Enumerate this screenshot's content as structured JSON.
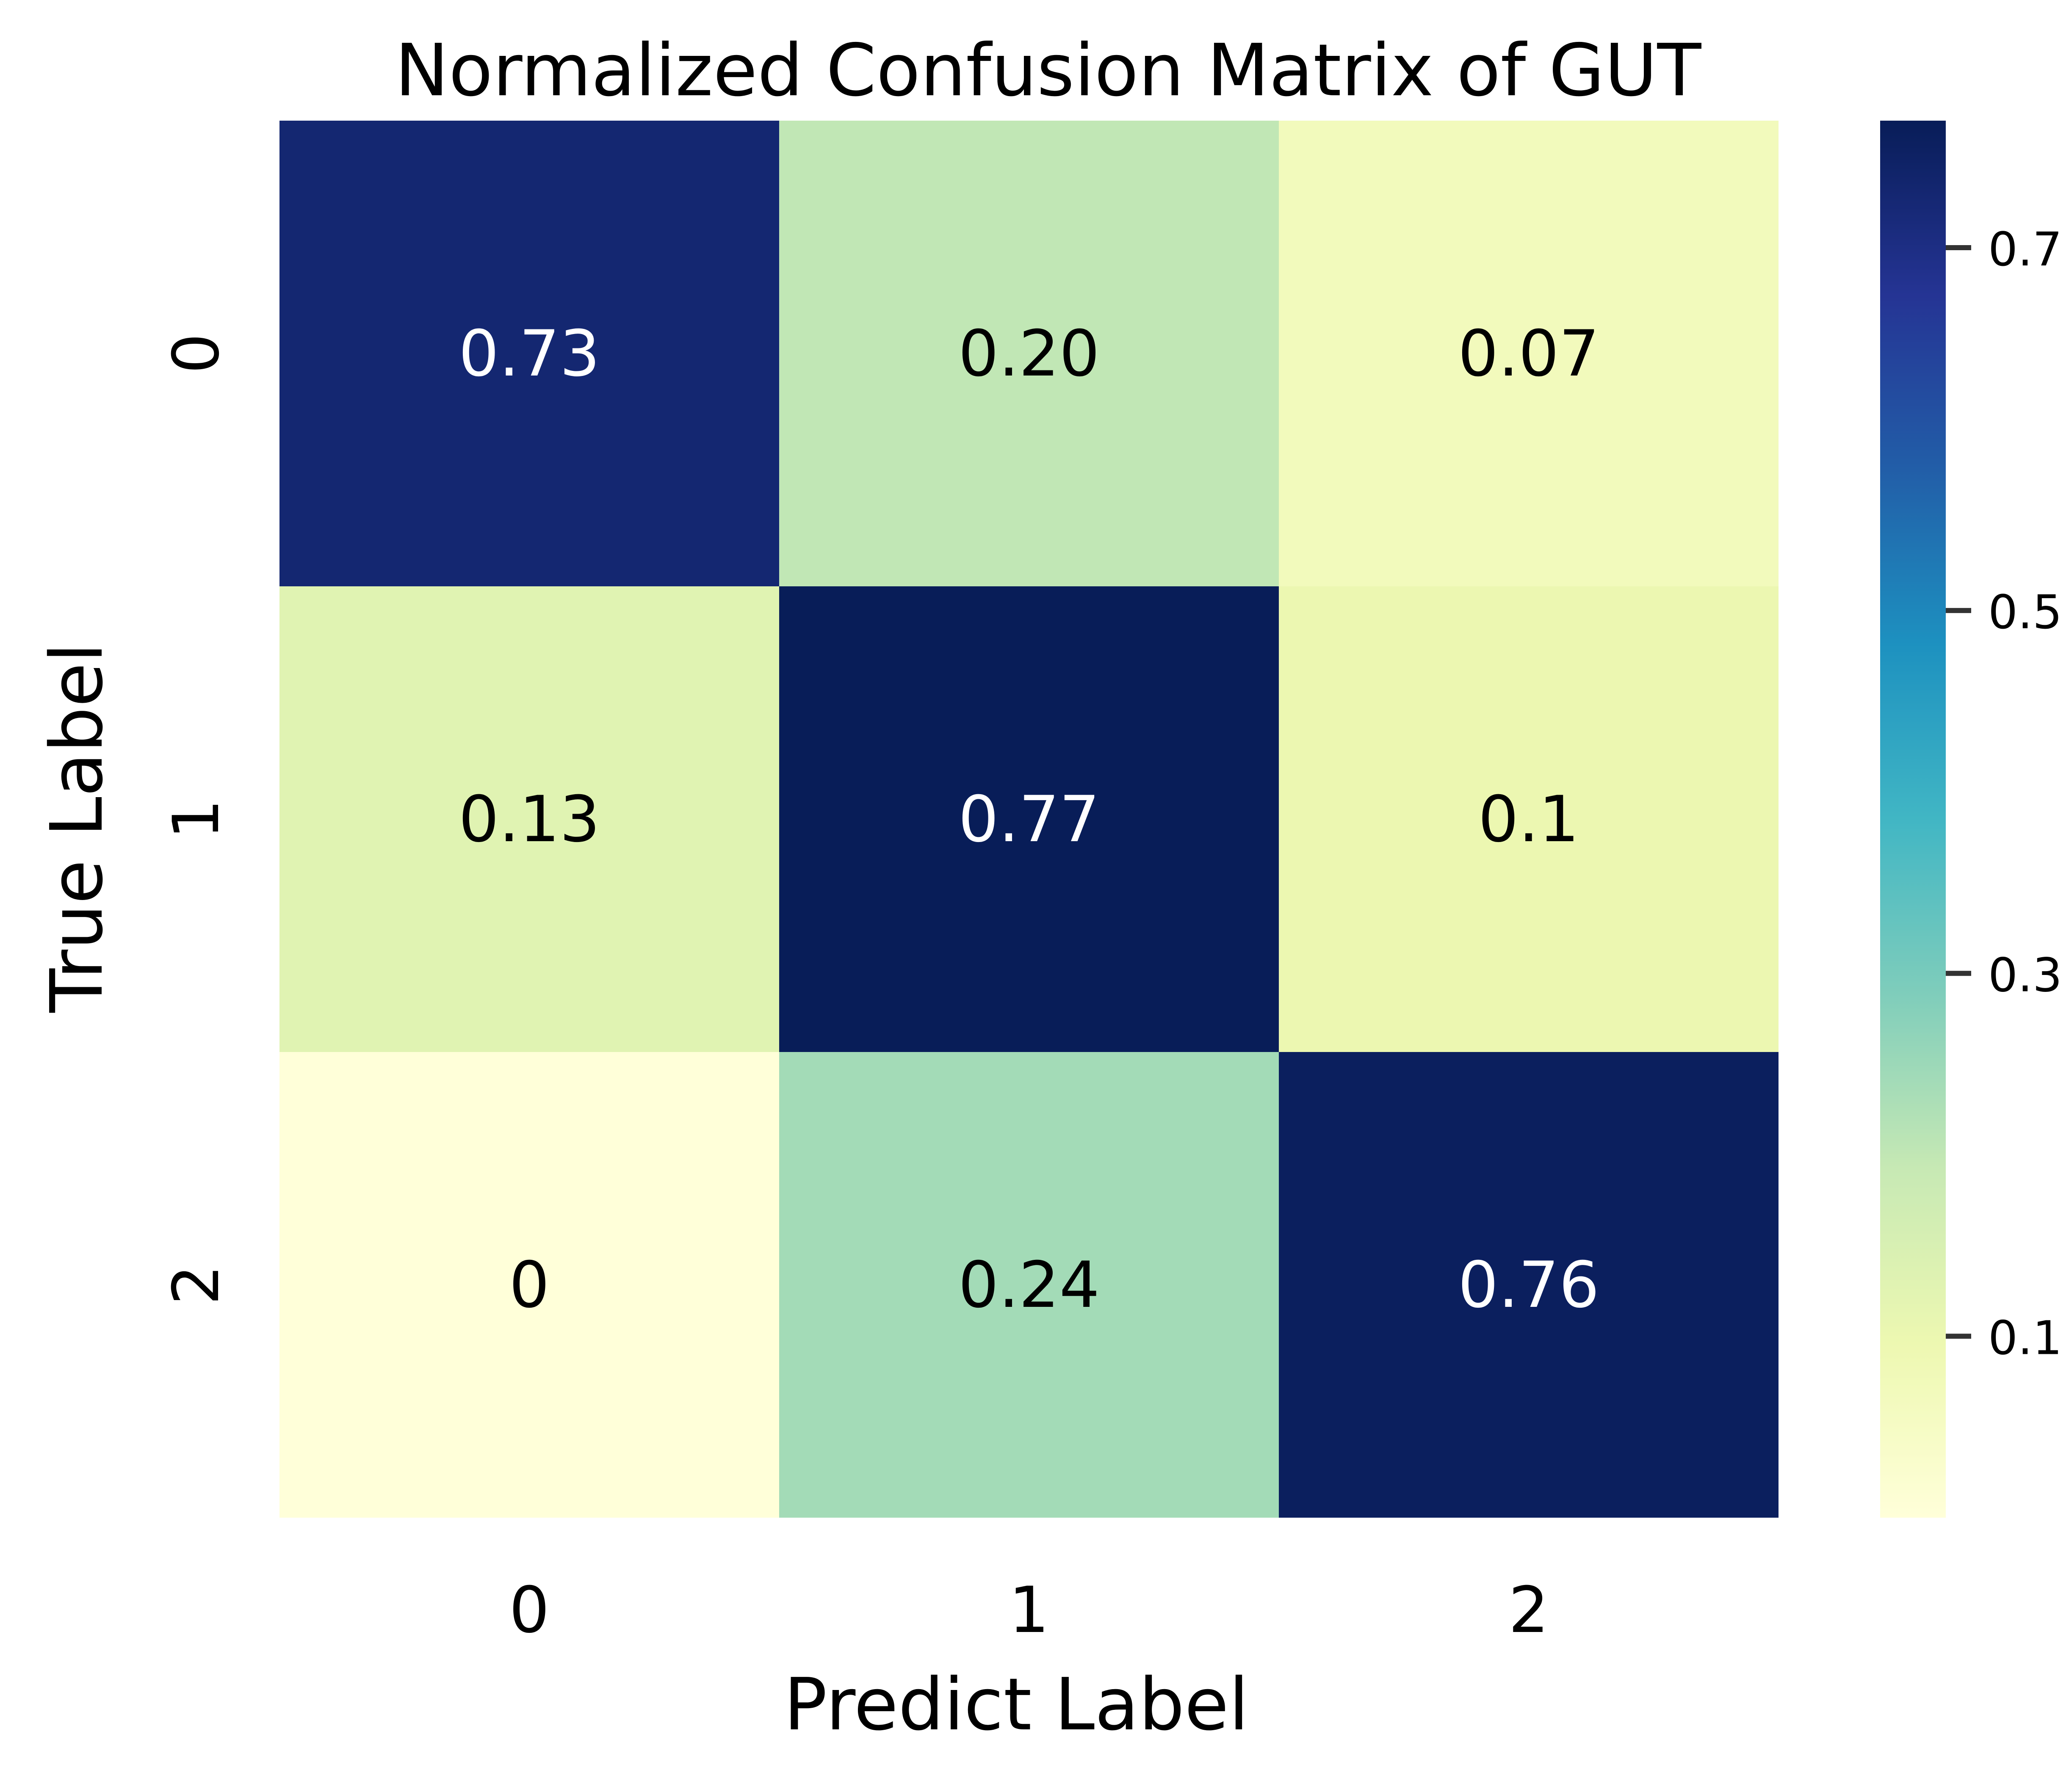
{
  "chart_data": {
    "type": "heatmap",
    "title": "Normalized Confusion Matrix of GUT",
    "xlabel": "Predict Label",
    "ylabel": "True Label",
    "x_categories": [
      "0",
      "1",
      "2"
    ],
    "y_categories": [
      "0",
      "1",
      "2"
    ],
    "values": [
      [
        0.73,
        0.2,
        0.07
      ],
      [
        0.13,
        0.77,
        0.1
      ],
      [
        0,
        0.24,
        0.76
      ]
    ],
    "annotations": [
      [
        "0.73",
        "0.20",
        "0.07"
      ],
      [
        "0.13",
        "0.77",
        "0.1"
      ],
      [
        "0",
        "0.24",
        "0.76"
      ]
    ],
    "colormap": "YlGnBu",
    "colorbar": {
      "range": [
        0,
        0.77
      ],
      "ticks": [
        0.1,
        0.3,
        0.5,
        0.7
      ],
      "tick_labels": [
        "0.1",
        "0.3",
        "0.5",
        "0.7"
      ]
    },
    "grid": false,
    "legend": "none",
    "colors": {
      "background": "#ffffff",
      "text_dark": "#000000",
      "text_light": "#ffffff"
    }
  }
}
